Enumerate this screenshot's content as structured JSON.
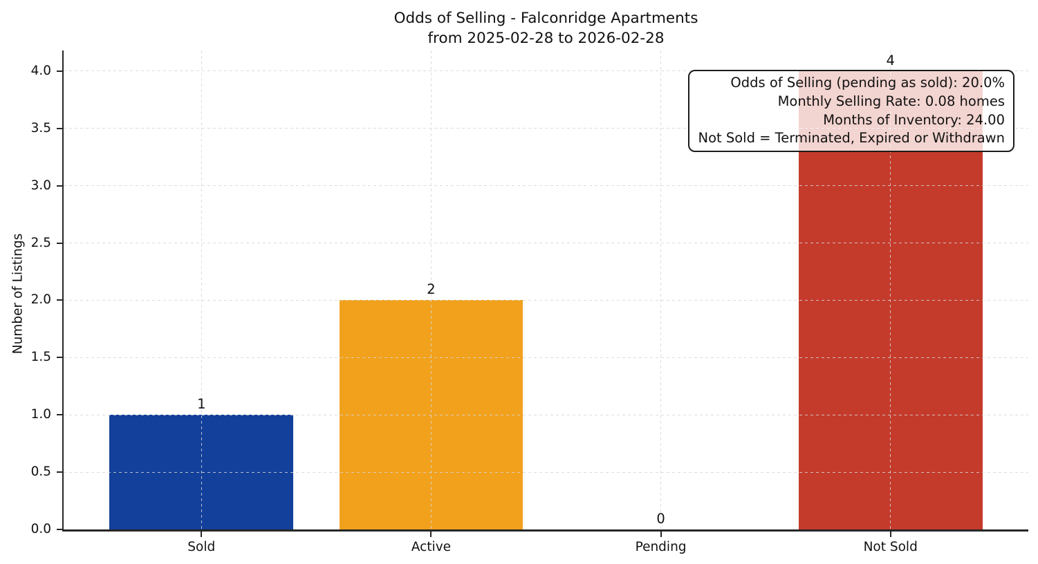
{
  "chart_data": {
    "type": "bar",
    "title": "Odds of Selling - Falconridge Apartments",
    "subtitle": "from 2025-02-28 to 2026-02-28",
    "categories": [
      "Sold",
      "Active",
      "Pending",
      "Not Sold"
    ],
    "values": [
      1,
      2,
      0,
      4
    ],
    "bar_colors": [
      "#13409a",
      "#f2a11c",
      null,
      "#c43b2c"
    ],
    "xlabel": "",
    "ylabel": "Number of Listings",
    "ylim": [
      0,
      4.18
    ],
    "yticks": [
      0,
      0.5,
      1,
      1.5,
      2,
      2.5,
      3,
      3.5,
      4
    ],
    "ytick_labels": [
      "0.0",
      "0.5",
      "1.0",
      "1.5",
      "2.0",
      "2.5",
      "3.0",
      "3.5",
      "4.0"
    ],
    "grid": {
      "style": "dashed",
      "axes": "both",
      "color": "#d9d9d9",
      "drawn_over_bars": true
    },
    "legend_position": "none",
    "annotation_box": {
      "position": "top-right",
      "text_align": "right",
      "border_color": "#1a1a1a",
      "background": "rgba(255,255,255,0.78)",
      "lines": [
        "Odds of Selling (pending as sold): 20.0%",
        "Monthly Selling Rate: 0.08 homes",
        "Months of Inventory: 24.00",
        "Not Sold = Terminated, Expired or Withdrawn"
      ]
    }
  },
  "colors": {
    "background": "#ffffff",
    "spine": "#262626",
    "text": "#111111",
    "sold_bar": "#13409a",
    "active_bar": "#f2a11c",
    "not_sold_bar": "#c43b2c",
    "grid": "#d9d9d9"
  }
}
